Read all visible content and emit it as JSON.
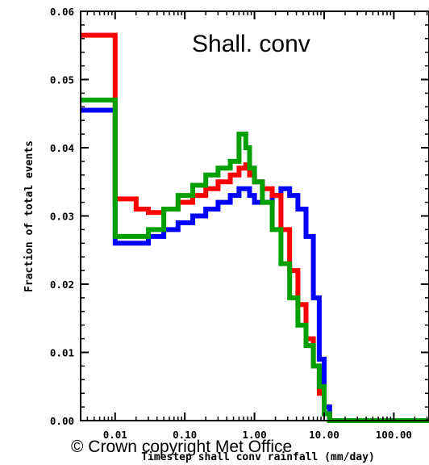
{
  "chart_data": {
    "type": "line",
    "title": "Shall. conv",
    "xlabel": "Timestep shall conv rainfall (mm/day)",
    "ylabel": "Fraction of total events",
    "x_scale": "log",
    "xlim": [
      0.0032,
      320
    ],
    "ylim": [
      0,
      0.06
    ],
    "x_tick_labels": [
      "0.01",
      "0.10",
      "1.00",
      "10.00",
      "100.00"
    ],
    "x_tick_values": [
      0.01,
      0.1,
      1,
      10,
      100
    ],
    "y_tick_labels": [
      "0.00",
      "0.01",
      "0.02",
      "0.03",
      "0.04",
      "0.05",
      "0.06"
    ],
    "y_tick_values": [
      0,
      0.01,
      0.02,
      0.03,
      0.04,
      0.05,
      0.06
    ],
    "footer": "© Crown copyright   Met Office",
    "series": [
      {
        "color": "#0000ff",
        "x": [
          0.0032,
          0.01,
          0.02,
          0.03,
          0.05,
          0.08,
          0.13,
          0.2,
          0.3,
          0.45,
          0.6,
          0.75,
          0.85,
          1.0,
          1.3,
          1.8,
          2.4,
          3.2,
          4.2,
          5.5,
          7.0,
          8.5,
          10.0,
          12.0,
          20,
          50,
          100,
          200,
          320
        ],
        "values": [
          0.0455,
          0.026,
          0.026,
          0.027,
          0.028,
          0.029,
          0.03,
          0.031,
          0.032,
          0.033,
          0.034,
          0.034,
          0.033,
          0.032,
          0.032,
          0.033,
          0.034,
          0.033,
          0.031,
          0.027,
          0.018,
          0.009,
          0.002,
          0.0,
          0.0,
          0.0,
          0.0,
          0.0,
          0.0
        ]
      },
      {
        "color": "#ff0000",
        "x": [
          0.0032,
          0.01,
          0.02,
          0.03,
          0.05,
          0.08,
          0.13,
          0.2,
          0.3,
          0.45,
          0.6,
          0.75,
          0.85,
          1.0,
          1.3,
          1.8,
          2.4,
          3.2,
          4.2,
          5.5,
          7.0,
          8.5,
          10.0,
          12.0,
          20,
          50,
          100,
          200,
          320
        ],
        "values": [
          0.0565,
          0.0325,
          0.031,
          0.0305,
          0.031,
          0.032,
          0.033,
          0.034,
          0.035,
          0.036,
          0.037,
          0.0375,
          0.036,
          0.035,
          0.034,
          0.033,
          0.028,
          0.022,
          0.017,
          0.012,
          0.008,
          0.004,
          0.001,
          0.0,
          0.0,
          0.0,
          0.0,
          0.0,
          0.0
        ]
      },
      {
        "color": "#00a000",
        "x": [
          0.0032,
          0.01,
          0.02,
          0.03,
          0.05,
          0.08,
          0.13,
          0.2,
          0.3,
          0.45,
          0.6,
          0.75,
          0.85,
          1.0,
          1.3,
          1.8,
          2.4,
          3.2,
          4.2,
          5.5,
          7.0,
          8.5,
          10.0,
          12.0,
          20,
          50,
          100,
          200,
          320
        ],
        "values": [
          0.047,
          0.027,
          0.027,
          0.028,
          0.031,
          0.033,
          0.0345,
          0.036,
          0.037,
          0.038,
          0.042,
          0.04,
          0.037,
          0.035,
          0.032,
          0.028,
          0.023,
          0.018,
          0.014,
          0.011,
          0.008,
          0.005,
          0.001,
          0.0,
          0.0,
          0.0,
          0.0,
          0.0,
          0.0
        ]
      }
    ]
  }
}
